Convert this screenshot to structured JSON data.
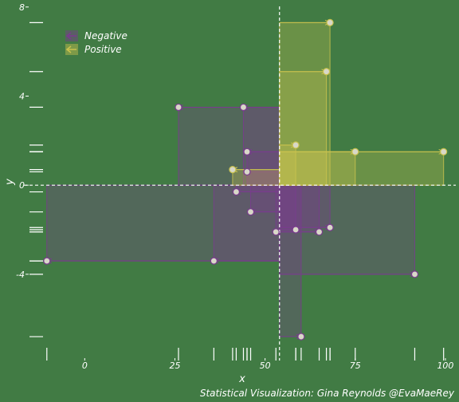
{
  "chart_data": {
    "type": "scatter",
    "xlabel": "x",
    "ylabel": "y",
    "caption": "Statistical Visualization: Gina Reynolds @EvaMaeRey",
    "x_ticks": [
      0,
      25,
      50,
      75,
      100
    ],
    "y_ticks": [
      -4,
      0,
      4,
      8
    ],
    "xlim": [
      -12,
      102
    ],
    "ylim": [
      -7.3,
      8.1
    ],
    "grid": false,
    "legend_position": "top-left",
    "mean_x": 54,
    "mean_y": 0,
    "series": [
      {
        "name": "Negative",
        "color": "#7A3B8F",
        "points": [
          {
            "x": -10.5,
            "y": -3.4
          },
          {
            "x": 35.8,
            "y": -3.4
          },
          {
            "x": 26,
            "y": 3.5
          },
          {
            "x": 44,
            "y": 3.5
          },
          {
            "x": 45,
            "y": 1.5
          },
          {
            "x": 45,
            "y": 0.6
          },
          {
            "x": 46,
            "y": -1.2
          },
          {
            "x": 42,
            "y": -0.3
          },
          {
            "x": 53,
            "y": -2.1
          },
          {
            "x": 58.5,
            "y": -2.0
          },
          {
            "x": 65,
            "y": -2.1
          },
          {
            "x": 68,
            "y": -1.9
          },
          {
            "x": 60,
            "y": -6.8
          },
          {
            "x": 91.5,
            "y": -4.0
          }
        ]
      },
      {
        "name": "Positive",
        "color": "#C9C24E",
        "points": [
          {
            "x": 41,
            "y": 0.7
          },
          {
            "x": 58.5,
            "y": 1.8
          },
          {
            "x": 75,
            "y": 1.5
          },
          {
            "x": 99.5,
            "y": 1.5
          },
          {
            "x": 67,
            "y": 5.1
          },
          {
            "x": 68,
            "y": 7.3
          }
        ]
      }
    ]
  }
}
